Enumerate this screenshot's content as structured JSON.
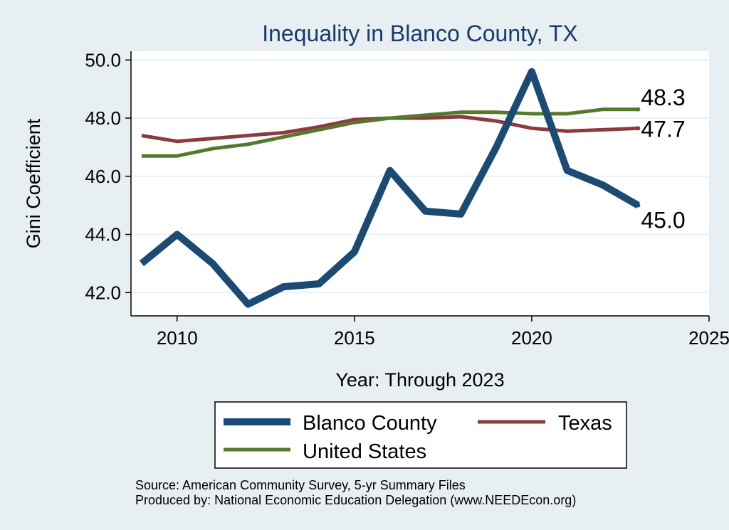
{
  "chart_data": {
    "type": "line",
    "title": "Inequality in Blanco County, TX",
    "xlabel": "Year: Through 2023",
    "ylabel": "Gini Coefficient",
    "xlim": [
      2008.7,
      2025
    ],
    "ylim": [
      41.2,
      50.3
    ],
    "xticks": [
      2010,
      2015,
      2020,
      2025
    ],
    "yticks": [
      42.0,
      44.0,
      46.0,
      48.0,
      50.0
    ],
    "xtick_labels": [
      "2010",
      "2015",
      "2020",
      "2025"
    ],
    "ytick_labels": [
      "42.0",
      "44.0",
      "46.0",
      "48.0",
      "50.0"
    ],
    "grid": true,
    "legend_position": "bottom",
    "series": [
      {
        "name": "Blanco County",
        "color": "#1d4a73",
        "x": [
          2009,
          2010,
          2011,
          2012,
          2013,
          2014,
          2015,
          2016,
          2017,
          2018,
          2019,
          2020,
          2021,
          2022,
          2023
        ],
        "values": [
          43.0,
          44.0,
          43.0,
          41.6,
          42.2,
          42.3,
          43.4,
          46.2,
          44.8,
          44.7,
          47.0,
          49.6,
          46.2,
          45.7,
          45.0
        ],
        "end_label": "45.0"
      },
      {
        "name": "Texas",
        "color": "#8b3a3e",
        "x": [
          2009,
          2010,
          2011,
          2012,
          2013,
          2014,
          2015,
          2016,
          2017,
          2018,
          2019,
          2020,
          2021,
          2022,
          2023
        ],
        "values": [
          47.4,
          47.2,
          47.3,
          47.4,
          47.5,
          47.7,
          47.95,
          48.0,
          48.0,
          48.05,
          47.9,
          47.65,
          47.55,
          47.6,
          47.65
        ],
        "end_label": "47.7"
      },
      {
        "name": "United States",
        "color": "#56782c",
        "x": [
          2009,
          2010,
          2011,
          2012,
          2013,
          2014,
          2015,
          2016,
          2017,
          2018,
          2019,
          2020,
          2021,
          2022,
          2023
        ],
        "values": [
          46.7,
          46.7,
          46.95,
          47.1,
          47.35,
          47.6,
          47.85,
          48.0,
          48.1,
          48.2,
          48.2,
          48.15,
          48.15,
          48.3,
          48.3
        ],
        "end_label": "48.3"
      }
    ],
    "notes": [
      "Source: American Community Survey, 5-yr Summary Files",
      "Produced by: National Economic Education Delegation (www.NEEDEcon.org)"
    ]
  }
}
